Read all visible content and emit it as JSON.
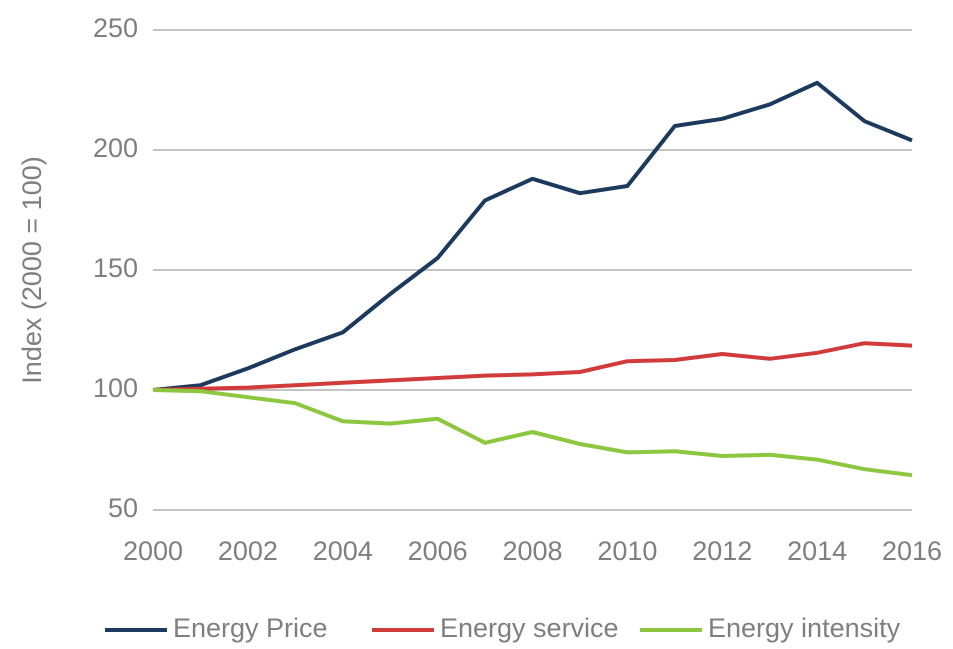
{
  "chart_data": {
    "type": "line",
    "y_label": "Index (2000 = 100)",
    "x": [
      2000,
      2001,
      2002,
      2003,
      2004,
      2005,
      2006,
      2007,
      2008,
      2009,
      2010,
      2011,
      2012,
      2013,
      2014,
      2015,
      2016
    ],
    "series": [
      {
        "name": "Energy Price",
        "color": "#1c3a5e",
        "values": [
          100,
          102,
          109,
          117,
          124,
          140,
          155,
          179,
          188,
          182,
          185,
          210,
          213,
          219,
          228,
          212,
          204
        ]
      },
      {
        "name": "Energy service",
        "color": "#d23b3b",
        "values": [
          100,
          100.5,
          101,
          102,
          103,
          104,
          105,
          106,
          106.5,
          107.5,
          112,
          112.5,
          115,
          113,
          115.5,
          119.5,
          118.5
        ]
      },
      {
        "name": "Energy intensity",
        "color": "#8dc63f",
        "values": [
          100,
          99.5,
          97,
          94.5,
          87,
          86,
          88,
          78,
          82.5,
          77.5,
          74,
          74.5,
          72.5,
          73,
          71,
          67,
          64.5
        ]
      }
    ],
    "xlim": [
      2000,
      2016
    ],
    "xticks": [
      2000,
      2002,
      2004,
      2006,
      2008,
      2010,
      2012,
      2014,
      2016
    ],
    "ylim": [
      50,
      250
    ],
    "yticks": [
      50,
      100,
      150,
      200,
      250
    ],
    "grid": true,
    "legend": "bottom"
  }
}
